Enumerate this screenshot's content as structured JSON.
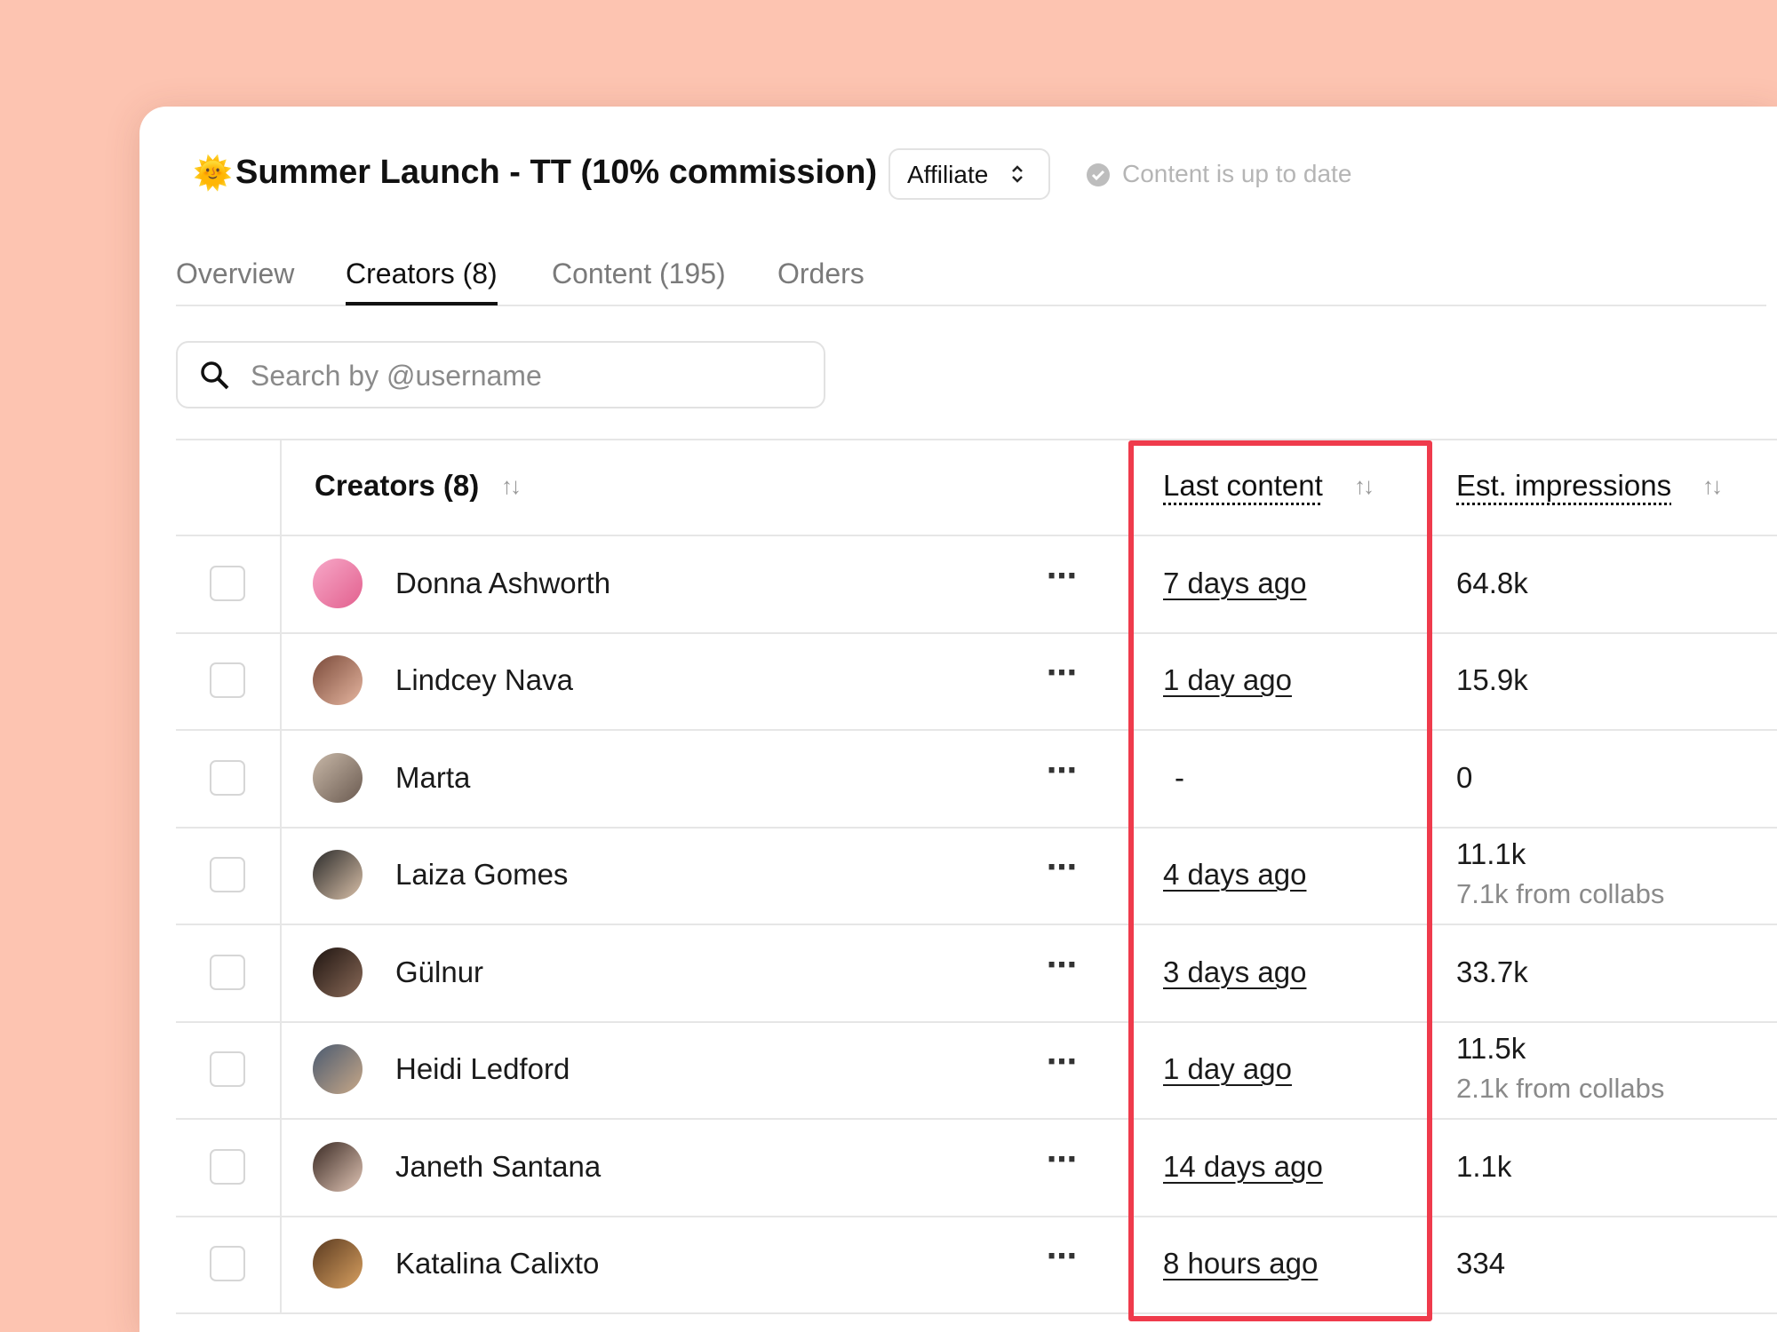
{
  "header": {
    "emoji": "🌞",
    "title": "Summer Launch - TT (10% commission)",
    "badge": "Affiliate",
    "status": "Content is up to date"
  },
  "tabs": [
    "Overview",
    "Creators (8)",
    "Content (195)",
    "Orders"
  ],
  "search": {
    "placeholder": "Search by @username"
  },
  "table": {
    "columns": [
      "Creators (8)",
      "Last content",
      "Est. impressions"
    ],
    "rows": [
      {
        "name": "Donna Ashworth",
        "last_content": "7 days ago",
        "impressions": "64.8k"
      },
      {
        "name": "Lindcey Nava",
        "last_content": "1 day ago",
        "impressions": "15.9k"
      },
      {
        "name": "Marta",
        "last_content": "-",
        "impressions": "0"
      },
      {
        "name": "Laiza Gomes",
        "last_content": "4 days ago",
        "impressions": "11.1k",
        "collabs": "7.1k from collabs"
      },
      {
        "name": "Gülnur",
        "last_content": "3 days ago",
        "impressions": "33.7k"
      },
      {
        "name": "Heidi Ledford",
        "last_content": "1 day ago",
        "impressions": "11.5k",
        "collabs": "2.1k from collabs"
      },
      {
        "name": "Janeth Santana",
        "last_content": "14 days ago",
        "impressions": "1.1k"
      },
      {
        "name": "Katalina Calixto",
        "last_content": "8 hours ago",
        "impressions": "334"
      }
    ]
  }
}
